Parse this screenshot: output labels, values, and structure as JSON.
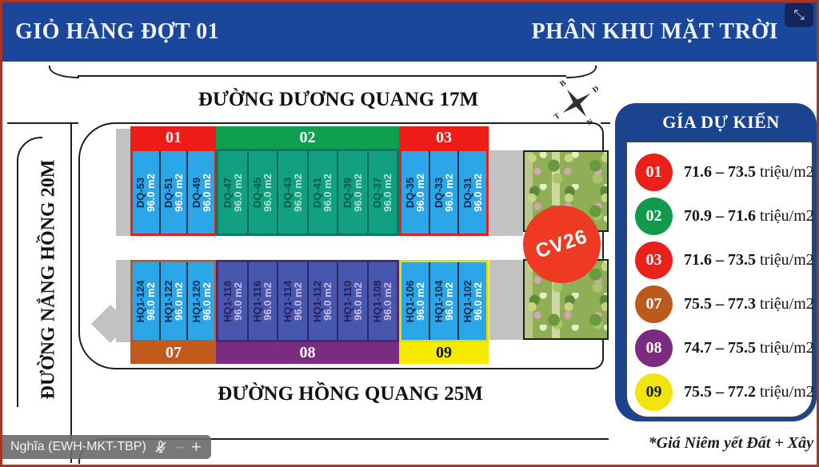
{
  "titlebar": {
    "left_title": "GIỎ HÀNG ĐỢT 01",
    "right_title": "PHÂN KHU MẶT TRỜI",
    "expand_glyph": "⤡"
  },
  "map": {
    "streets": {
      "top": "ĐƯỜNG DƯƠNG QUANG 17M",
      "left": "ĐƯỜNG NẮNG HỒNG 20M",
      "bottom": "ĐƯỜNG HỒNG QUANG 25M"
    },
    "compass": {
      "north": "B",
      "east": "Đ",
      "south": "N",
      "west": "T"
    },
    "park_label": "CV26",
    "park_circle_color": "#ee3a22",
    "lot_styles": {
      "blue": {
        "bg": "#2ba6e9",
        "id_color": "#102a4e",
        "area_color": "#ffffff",
        "divider": "#173a59"
      },
      "green": {
        "bg": "#12a083",
        "id_color": "#0b5b45",
        "area_color": "#b2e3d2",
        "divider": "#0c6e55"
      },
      "indigo": {
        "bg": "#4857ae",
        "id_color": "#281d58",
        "area_color": "#cdbbe6",
        "divider": "#2c2766"
      }
    },
    "rows": [
      {
        "blocks": [
          {
            "id": "01",
            "band_color": "#ee1c16",
            "band_text_color": "#ffffff",
            "border_color": "#ee1c16",
            "lot_style": "blue",
            "lots": [
              {
                "id": "DQ-53",
                "area": "96.0 m2"
              },
              {
                "id": "DQ-51",
                "area": "96.0 m2"
              },
              {
                "id": "DQ-49",
                "area": "96.0 m2"
              }
            ]
          },
          {
            "id": "02",
            "band_color": "#0fa04f",
            "band_text_color": "#ffffff",
            "border_color": "#0c7a5d",
            "lot_style": "green",
            "lots": [
              {
                "id": "DQ-47",
                "area": "96.0 m2"
              },
              {
                "id": "DQ-45",
                "area": "96.0 m2"
              },
              {
                "id": "DQ-43",
                "area": "96.0 m2"
              },
              {
                "id": "DQ-41",
                "area": "96.0 m2"
              },
              {
                "id": "DQ-39",
                "area": "96.0 m2"
              },
              {
                "id": "DQ-37",
                "area": "96.0 m2"
              }
            ]
          },
          {
            "id": "03",
            "band_color": "#ee1c16",
            "band_text_color": "#ffffff",
            "border_color": "#ee1c16",
            "lot_style": "blue",
            "lots": [
              {
                "id": "DQ-35",
                "area": "96.0 m2"
              },
              {
                "id": "DQ-33",
                "area": "96.0 m2"
              },
              {
                "id": "DQ-31",
                "area": "96.0 m2"
              }
            ]
          }
        ]
      },
      {
        "blocks": [
          {
            "id": "07",
            "band_color": "#c25a1d",
            "band_text_color": "#ffffff",
            "border_color": "#c25a1d",
            "lot_style": "blue",
            "lots": [
              {
                "id": "HQ1-124",
                "area": "96.0 m2"
              },
              {
                "id": "HQ1-122",
                "area": "96.0 m2"
              },
              {
                "id": "HQ1-120",
                "area": "96.0 m2"
              }
            ]
          },
          {
            "id": "08",
            "band_color": "#7b2b80",
            "band_text_color": "#ffffff",
            "border_color": "#4a2a6e",
            "lot_style": "indigo",
            "lots": [
              {
                "id": "HQ1-118",
                "area": "96.0 m2"
              },
              {
                "id": "HQ1-116",
                "area": "96.0 m2"
              },
              {
                "id": "HQ1-114",
                "area": "96.0 m2"
              },
              {
                "id": "HQ1-112",
                "area": "96.0 m2"
              },
              {
                "id": "HQ1-110",
                "area": "96.0 m2"
              },
              {
                "id": "HQ1-108",
                "area": "96.0 m2"
              }
            ]
          },
          {
            "id": "09",
            "band_color": "#f6ea00",
            "band_text_color": "#111111",
            "border_color": "#e8dc00",
            "lot_style": "blue",
            "lots": [
              {
                "id": "HQ1-106",
                "area": "96.0 m2"
              },
              {
                "id": "HQ1-104",
                "area": "96.0 m2"
              },
              {
                "id": "HQ1-102",
                "area": "96.0 m2"
              }
            ]
          }
        ]
      }
    ]
  },
  "legend": {
    "title": "GÍA DỰ KIẾN",
    "rows": [
      {
        "id": "01",
        "color": "#e92118",
        "number_color": "#ffffff",
        "range": "71.6 – 73.5",
        "unit": " triệu/m2"
      },
      {
        "id": "02",
        "color": "#119a4b",
        "number_color": "#ffffff",
        "range": "70.9 – 71.6",
        "unit": " triệu/m2"
      },
      {
        "id": "03",
        "color": "#e92118",
        "number_color": "#ffffff",
        "range": "71.6 – 73.5",
        "unit": " triệu/m2"
      },
      {
        "id": "07",
        "color": "#bb5a1d",
        "number_color": "#ffffff",
        "range": "75.5 – 77.3",
        "unit": " triệu/m2"
      },
      {
        "id": "08",
        "color": "#7b2b80",
        "number_color": "#ffffff",
        "range": "74.7 – 75.5",
        "unit": " triệu/m2"
      },
      {
        "id": "09",
        "color": "#f2e50e",
        "number_color": "#1a1a1a",
        "range": "75.5 – 77.2",
        "unit": " triệu/m2"
      }
    ],
    "footnote": "*Giá Niêm yết Đất + Xây"
  },
  "overlay": {
    "presenter": "Nghĩa (EWH-MKT-TBP)",
    "minus_label": "–",
    "plus_label": "+"
  }
}
